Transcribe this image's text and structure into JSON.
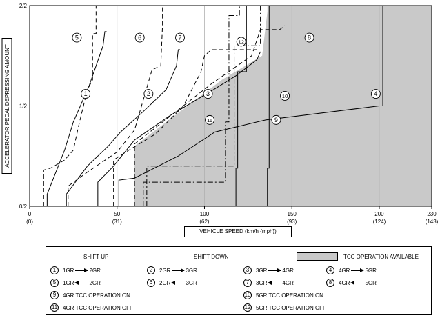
{
  "chart_data": {
    "type": "line",
    "ylabel": "ACCELERATOR PEDAL DEPRESSING AMOUNT",
    "xlabel": "VEHICLE SPEED (km/h {mph})",
    "xlim": [
      0,
      230
    ],
    "ylim": [
      0,
      1
    ],
    "x_ticks": [
      {
        "value": 0,
        "label": "0",
        "sublabel": "(0)"
      },
      {
        "value": 50,
        "label": "50",
        "sublabel": "(31)"
      },
      {
        "value": 100,
        "label": "100",
        "sublabel": "(62)"
      },
      {
        "value": 150,
        "label": "150",
        "sublabel": "(93)"
      },
      {
        "value": 200,
        "label": "200",
        "sublabel": "(124)"
      },
      {
        "value": 230,
        "label": "230",
        "sublabel": "(143)"
      }
    ],
    "y_ticks": [
      {
        "value": 0,
        "label": "0/2"
      },
      {
        "value": 0.5,
        "label": "1/2"
      },
      {
        "value": 1,
        "label": "2/2"
      }
    ],
    "grid": true,
    "colors": {
      "tcc_fill": "#c9c9c9",
      "line": "#000000",
      "grid": "#b0b0b0"
    },
    "tcc_region": [
      [
        60,
        0
      ],
      [
        60,
        0.3
      ],
      [
        110,
        0.63
      ],
      [
        133,
        0.75
      ],
      [
        136,
        0.97
      ],
      [
        136,
        1
      ],
      [
        230,
        1
      ],
      [
        230,
        0
      ]
    ],
    "series": [
      {
        "name": "1",
        "style": "solid",
        "x": [
          10,
          10,
          20,
          25,
          34,
          42,
          43,
          44
        ],
        "y": [
          0,
          0.06,
          0.28,
          0.42,
          0.6,
          0.8,
          0.87,
          0.87
        ]
      },
      {
        "name": "2",
        "style": "solid",
        "x": [
          21,
          21,
          33,
          45,
          52,
          66,
          78,
          84,
          85,
          86
        ],
        "y": [
          0,
          0.06,
          0.2,
          0.3,
          0.37,
          0.48,
          0.58,
          0.7,
          0.78,
          0.78
        ]
      },
      {
        "name": "3",
        "style": "solid",
        "x": [
          39,
          39,
          48,
          60,
          80,
          105,
          118,
          130,
          132
        ],
        "y": [
          0,
          0.12,
          0.2,
          0.33,
          0.45,
          0.58,
          0.65,
          0.73,
          0.77
        ]
      },
      {
        "name": "4",
        "style": "solid",
        "x": [
          51,
          51,
          60,
          85,
          106,
          135,
          200,
          202,
          202
        ],
        "y": [
          0,
          0.13,
          0.14,
          0.25,
          0.37,
          0.43,
          0.5,
          0.5,
          1
        ]
      },
      {
        "name": "5",
        "style": "dashed",
        "x": [
          8,
          8,
          12,
          20,
          25,
          28,
          33,
          36,
          36,
          38,
          38
        ],
        "y": [
          0,
          0.18,
          0.19,
          0.23,
          0.28,
          0.4,
          0.58,
          0.63,
          0.86,
          0.86,
          1
        ]
      },
      {
        "name": "6",
        "style": "dashed",
        "x": [
          22,
          22,
          33,
          50,
          60,
          70,
          75,
          76,
          76
        ],
        "y": [
          0,
          0.1,
          0.17,
          0.27,
          0.38,
          0.68,
          0.7,
          0.9,
          1
        ]
      },
      {
        "name": "7",
        "style": "dashed",
        "x": [
          48,
          48,
          55,
          72,
          88,
          98,
          100,
          104,
          130
        ],
        "y": [
          0,
          0.23,
          0.27,
          0.36,
          0.5,
          0.67,
          0.75,
          0.78,
          0.78
        ]
      },
      {
        "name": "8",
        "style": "dashed",
        "x": [
          60,
          60,
          104,
          127,
          132,
          143,
          146
        ],
        "y": [
          0,
          0.31,
          0.61,
          0.75,
          0.88,
          0.88,
          0.9
        ]
      },
      {
        "name": "9",
        "style": "solid",
        "x": [
          118,
          118,
          119,
          119,
          124,
          124
        ],
        "y": [
          0,
          0.19,
          0.19,
          0.67,
          0.67,
          1
        ]
      },
      {
        "name": "10",
        "style": "solid",
        "x": [
          136,
          136,
          137,
          137,
          137
        ],
        "y": [
          0,
          0.19,
          0.19,
          0.67,
          1
        ]
      },
      {
        "name": "11",
        "style": "dashdot",
        "x": [
          65,
          65,
          112,
          112,
          114,
          114,
          120,
          120
        ],
        "y": [
          0,
          0.12,
          0.12,
          0.42,
          0.42,
          0.95,
          0.95,
          1
        ]
      },
      {
        "name": "12",
        "style": "dashdot",
        "x": [
          67,
          67,
          117,
          117,
          132,
          132
        ],
        "y": [
          0,
          0.2,
          0.2,
          0.8,
          0.8,
          1
        ]
      }
    ],
    "curve_labels": [
      {
        "text": "1",
        "x": 32,
        "y": 0.56
      },
      {
        "text": "2",
        "x": 68,
        "y": 0.56
      },
      {
        "text": "3",
        "x": 102,
        "y": 0.56
      },
      {
        "text": "4",
        "x": 198,
        "y": 0.56
      },
      {
        "text": "5",
        "x": 27,
        "y": 0.84
      },
      {
        "text": "6",
        "x": 63,
        "y": 0.84
      },
      {
        "text": "7",
        "x": 86,
        "y": 0.84
      },
      {
        "text": "8",
        "x": 160,
        "y": 0.84
      },
      {
        "text": "9",
        "x": 141,
        "y": 0.43
      },
      {
        "text": "10",
        "x": 146,
        "y": 0.55
      },
      {
        "text": "11",
        "x": 103,
        "y": 0.43
      },
      {
        "text": "12",
        "x": 121,
        "y": 0.82
      }
    ]
  },
  "legend": {
    "shift_up": "SHIFT UP",
    "shift_down": "SHIFT DOWN",
    "tcc": "TCC OPERATION AVAILABLE",
    "items": [
      {
        "n": "1",
        "from": "1GR",
        "to": "2GR",
        "dir": "r"
      },
      {
        "n": "2",
        "from": "2GR",
        "to": "3GR",
        "dir": "r"
      },
      {
        "n": "3",
        "from": "3GR",
        "to": "4GR",
        "dir": "r"
      },
      {
        "n": "4",
        "from": "4GR",
        "to": "5GR",
        "dir": "r"
      },
      {
        "n": "5",
        "from": "1GR",
        "to": "2GR",
        "dir": "l"
      },
      {
        "n": "6",
        "from": "2GR",
        "to": "3GR",
        "dir": "l"
      },
      {
        "n": "7",
        "from": "3GR",
        "to": "4GR",
        "dir": "l"
      },
      {
        "n": "8",
        "from": "4GR",
        "to": "5GR",
        "dir": "l"
      }
    ],
    "ops": [
      {
        "n": "9",
        "text": "4GR TCC OPERATION ON"
      },
      {
        "n": "10",
        "text": "5GR TCC OPERATION ON"
      },
      {
        "n": "11",
        "text": "4GR TCC OPERATION OFF"
      },
      {
        "n": "12",
        "text": "5GR TCC OPERATION OFF"
      }
    ]
  }
}
